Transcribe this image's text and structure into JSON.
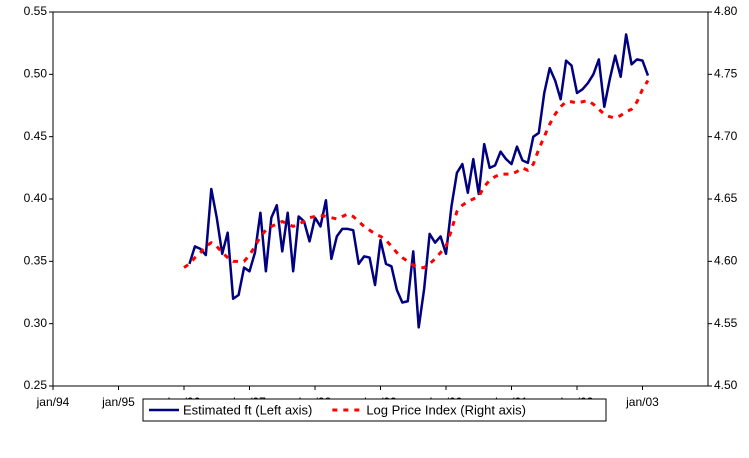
{
  "chart_data": {
    "type": "line",
    "categories": [
      "jan/94",
      null,
      null,
      null,
      null,
      null,
      null,
      null,
      null,
      null,
      null,
      null,
      "jan/95",
      null,
      null,
      null,
      null,
      null,
      null,
      null,
      null,
      null,
      null,
      null,
      "jan/96",
      null,
      null,
      null,
      null,
      null,
      null,
      null,
      null,
      null,
      null,
      null,
      "jan/97",
      null,
      null,
      null,
      null,
      null,
      null,
      null,
      null,
      null,
      null,
      null,
      "jan/98",
      null,
      null,
      null,
      null,
      null,
      null,
      null,
      null,
      null,
      null,
      null,
      "jan/99",
      null,
      null,
      null,
      null,
      null,
      null,
      null,
      null,
      null,
      null,
      null,
      "jan/00",
      null,
      null,
      null,
      null,
      null,
      null,
      null,
      null,
      null,
      null,
      null,
      "jan/01",
      null,
      null,
      null,
      null,
      null,
      null,
      null,
      null,
      null,
      null,
      null,
      "jan/02",
      null,
      null,
      null,
      null,
      null,
      null,
      null,
      null,
      null,
      null,
      null,
      "jan/03",
      null,
      null,
      null,
      null,
      null,
      null,
      null,
      null,
      null,
      null,
      null
    ],
    "series": [
      {
        "name": "Estimated ft (Left axis)",
        "color": "#000080",
        "dashed": false,
        "values": [
          null,
          null,
          null,
          null,
          null,
          null,
          null,
          null,
          null,
          null,
          null,
          null,
          null,
          null,
          null,
          null,
          null,
          null,
          null,
          null,
          null,
          null,
          null,
          null,
          null,
          0.348,
          0.362,
          0.36,
          0.355,
          0.408,
          0.385,
          0.356,
          0.373,
          0.32,
          0.323,
          0.345,
          0.342,
          0.357,
          0.389,
          0.342,
          0.385,
          0.395,
          0.358,
          0.389,
          0.342,
          0.386,
          0.382,
          0.366,
          0.385,
          0.378,
          0.399,
          0.352,
          0.37,
          0.376,
          0.376,
          0.375,
          0.348,
          0.354,
          0.353,
          0.331,
          0.367,
          0.348,
          0.346,
          0.327,
          0.317,
          0.318,
          0.358,
          0.297,
          0.328,
          0.372,
          0.365,
          0.37,
          0.356,
          0.394,
          0.421,
          0.428,
          0.405,
          0.432,
          0.404,
          0.444,
          0.425,
          0.427,
          0.438,
          0.432,
          0.428,
          0.442,
          0.431,
          0.429,
          0.45,
          0.453,
          0.485,
          0.505,
          0.495,
          0.48,
          0.511,
          0.507,
          0.485,
          0.488,
          0.493,
          0.5,
          0.512,
          0.474,
          0.496,
          0.515,
          0.498,
          0.532,
          0.508,
          0.512,
          0.511,
          0.499,
          null,
          null,
          null,
          null,
          null,
          null,
          null,
          null,
          null,
          null
        ]
      },
      {
        "name": "Log Price Index (Right axis)",
        "color": "#ff0000",
        "dashed": true,
        "axis": "y2",
        "values": [
          null,
          null,
          null,
          null,
          null,
          null,
          null,
          null,
          null,
          null,
          null,
          null,
          null,
          null,
          null,
          null,
          null,
          null,
          null,
          null,
          null,
          null,
          null,
          null,
          4.595,
          4.598,
          4.603,
          4.607,
          4.612,
          4.615,
          4.612,
          4.607,
          4.603,
          4.6,
          4.6,
          4.6,
          4.605,
          4.612,
          4.62,
          4.625,
          4.628,
          4.63,
          4.632,
          4.63,
          4.628,
          4.63,
          4.632,
          4.635,
          4.636,
          4.637,
          4.636,
          4.635,
          4.634,
          4.636,
          4.638,
          4.636,
          4.632,
          4.628,
          4.625,
          4.622,
          4.62,
          4.617,
          4.612,
          4.607,
          4.603,
          4.6,
          4.597,
          4.595,
          4.595,
          4.598,
          4.602,
          4.607,
          4.612,
          4.625,
          4.64,
          4.645,
          4.648,
          4.65,
          4.652,
          4.66,
          4.665,
          4.668,
          4.67,
          4.67,
          4.67,
          4.672,
          4.675,
          4.673,
          4.678,
          4.69,
          4.7,
          4.71,
          4.718,
          4.724,
          4.728,
          4.728,
          4.727,
          4.728,
          4.729,
          4.726,
          4.722,
          4.718,
          4.716,
          4.715,
          4.717,
          4.72,
          4.722,
          4.728,
          4.738,
          4.745,
          null,
          null,
          null,
          null,
          null,
          null,
          null,
          null,
          null,
          null
        ]
      }
    ],
    "ylim": [
      0.25,
      0.55
    ],
    "yticks": [
      0.25,
      {
        "value": 0.3,
        "label": "0.30"
      },
      0.35,
      {
        "value": 0.4,
        "label": "0.40"
      },
      0.45,
      {
        "value": 0.5,
        "label": "0.50"
      },
      0.55
    ],
    "y2lim": [
      4.5,
      4.8
    ],
    "y2ticks": [
      {
        "value": 4.5,
        "label": "4.50"
      },
      4.55,
      {
        "value": 4.6,
        "label": "4.60"
      },
      4.65,
      {
        "value": 4.7,
        "label": "4.70"
      },
      4.75,
      {
        "value": 4.8,
        "label": "4.80"
      }
    ],
    "grid": false,
    "legend": "bottom"
  }
}
